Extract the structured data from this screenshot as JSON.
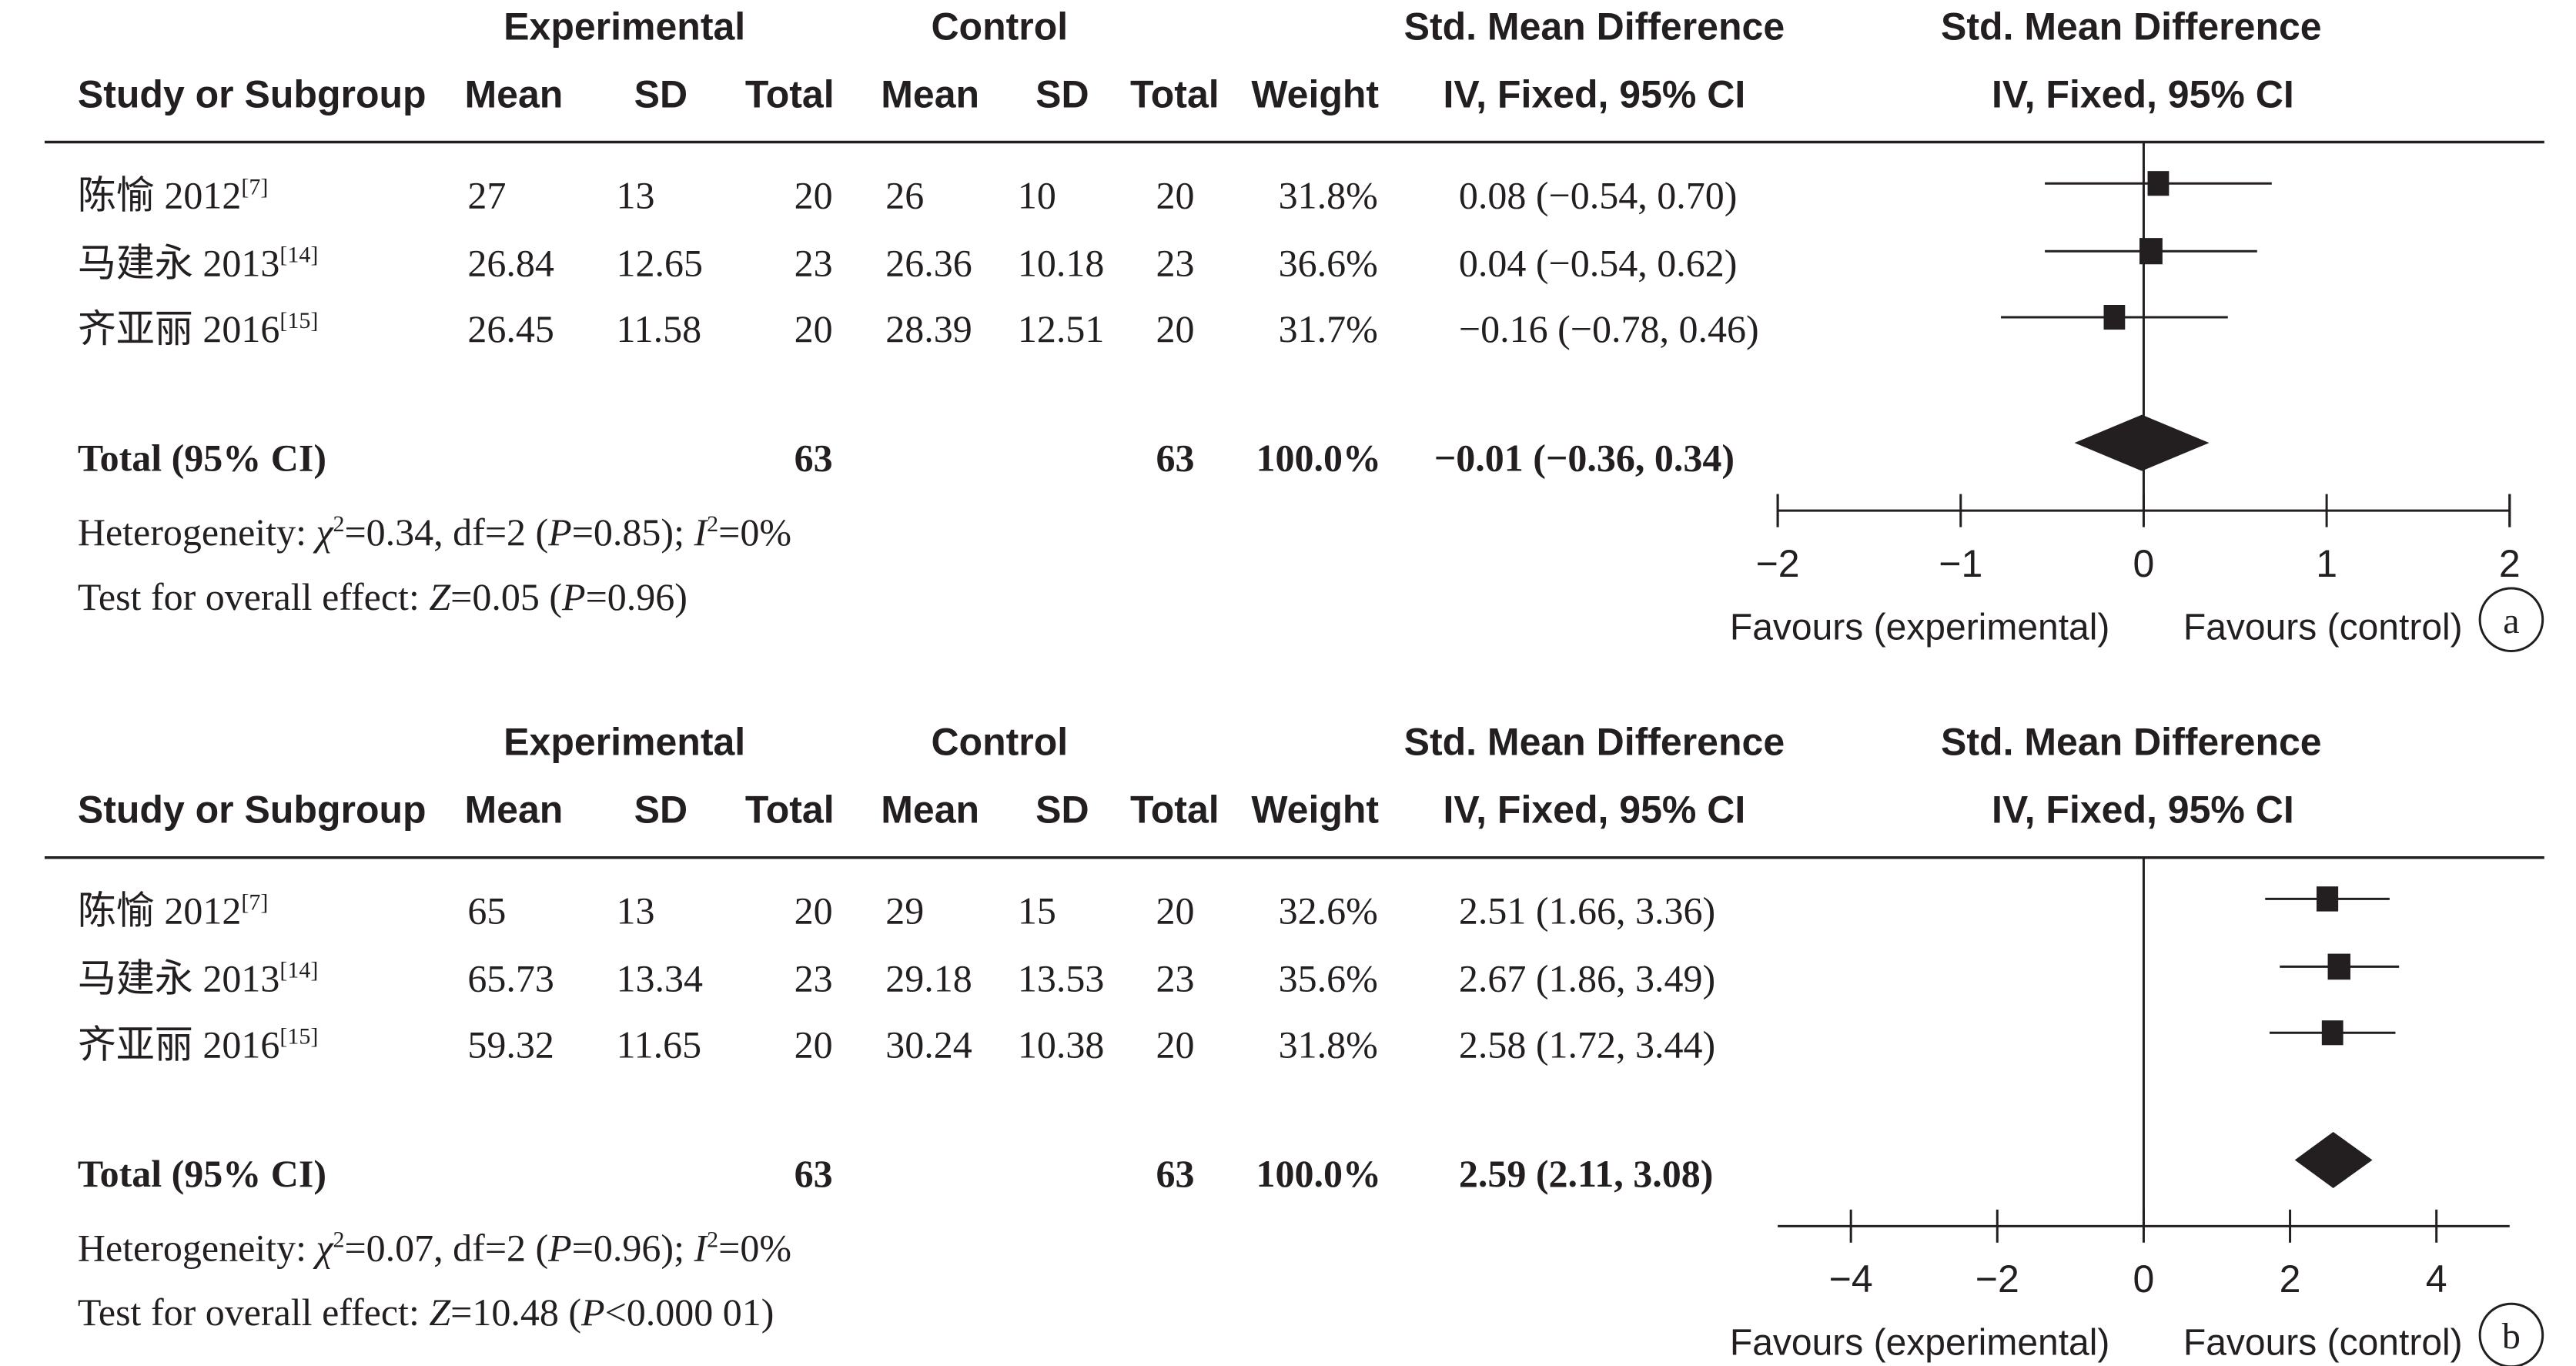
{
  "headers": {
    "experimental": "Experimental",
    "control": "Control",
    "smd": "Std. Mean Difference",
    "smd_plot": "Std. Mean Difference",
    "study": "Study or Subgroup",
    "mean": "Mean",
    "sd": "SD",
    "total": "Total",
    "weight": "Weight",
    "method": "IV, Fixed, 95% CI",
    "method_plot": "IV, Fixed, 95% CI"
  },
  "chart_data": [
    {
      "type": "forest",
      "panel_label": "a",
      "studies": [
        {
          "name": "陈愉 2012",
          "ref": "[7]",
          "exp_mean": "27",
          "exp_sd": "13",
          "exp_total": "20",
          "ctl_mean": "26",
          "ctl_sd": "10",
          "ctl_total": "20",
          "weight": "31.8%",
          "ci_text": "0.08 (−0.54, 0.70)",
          "est": 0.08,
          "lo": -0.54,
          "hi": 0.7,
          "w": 31.8
        },
        {
          "name": "马建永 2013",
          "ref": "[14]",
          "exp_mean": "26.84",
          "exp_sd": "12.65",
          "exp_total": "23",
          "ctl_mean": "26.36",
          "ctl_sd": "10.18",
          "ctl_total": "23",
          "weight": "36.6%",
          "ci_text": "0.04 (−0.54, 0.62)",
          "est": 0.04,
          "lo": -0.54,
          "hi": 0.62,
          "w": 36.6
        },
        {
          "name": "齐亚丽 2016",
          "ref": "[15]",
          "exp_mean": "26.45",
          "exp_sd": "11.58",
          "exp_total": "20",
          "ctl_mean": "28.39",
          "ctl_sd": "12.51",
          "ctl_total": "20",
          "weight": "31.7%",
          "ci_text": "−0.16 (−0.78, 0.46)",
          "est": -0.16,
          "lo": -0.78,
          "hi": 0.46,
          "w": 31.7
        }
      ],
      "total": {
        "label": "Total (95% CI)",
        "exp_total": "63",
        "ctl_total": "63",
        "weight": "100.0%",
        "ci_text": "−0.01 (−0.36, 0.34)",
        "est": -0.01,
        "lo": -0.36,
        "hi": 0.34
      },
      "heterogeneity": {
        "prefix": "Heterogeneity: ",
        "chi": "χ",
        "chi_sup": "2",
        "chi_rest": "=0.34, df=2 (",
        "p": "P",
        "p_rest": "=0.85); ",
        "i": "I",
        "i_sup": "2",
        "i_rest": "=0%"
      },
      "overall": {
        "prefix": "Test for overall effect: ",
        "z": "Z",
        "z_rest": "=0.05 (",
        "p": "P",
        "p_rest": "=0.96)"
      },
      "axis": {
        "min": -2,
        "max": 2,
        "ticks": [
          -2,
          -1,
          0,
          1,
          2
        ],
        "tick_labels": [
          "−2",
          "−1",
          "0",
          "1",
          "2"
        ]
      },
      "favours_left": "Favours (experimental)",
      "favours_right": "Favours (control)"
    },
    {
      "type": "forest",
      "panel_label": "b",
      "studies": [
        {
          "name": "陈愉 2012",
          "ref": "[7]",
          "exp_mean": "65",
          "exp_sd": "13",
          "exp_total": "20",
          "ctl_mean": "29",
          "ctl_sd": "15",
          "ctl_total": "20",
          "weight": "32.6%",
          "ci_text": "2.51 (1.66, 3.36)",
          "est": 2.51,
          "lo": 1.66,
          "hi": 3.36,
          "w": 32.6
        },
        {
          "name": "马建永 2013",
          "ref": "[14]",
          "exp_mean": "65.73",
          "exp_sd": "13.34",
          "exp_total": "23",
          "ctl_mean": "29.18",
          "ctl_sd": "13.53",
          "ctl_total": "23",
          "weight": "35.6%",
          "ci_text": "2.67 (1.86, 3.49)",
          "est": 2.67,
          "lo": 1.86,
          "hi": 3.49,
          "w": 35.6
        },
        {
          "name": "齐亚丽 2016",
          "ref": "[15]",
          "exp_mean": "59.32",
          "exp_sd": "11.65",
          "exp_total": "20",
          "ctl_mean": "30.24",
          "ctl_sd": "10.38",
          "ctl_total": "20",
          "weight": "31.8%",
          "ci_text": "2.58 (1.72, 3.44)",
          "est": 2.58,
          "lo": 1.72,
          "hi": 3.44,
          "w": 31.8
        }
      ],
      "total": {
        "label": "Total (95% CI)",
        "exp_total": "63",
        "ctl_total": "63",
        "weight": "100.0%",
        "ci_text": "2.59 (2.11, 3.08)",
        "est": 2.59,
        "lo": 2.11,
        "hi": 3.08
      },
      "heterogeneity": {
        "prefix": "Heterogeneity: ",
        "chi": "χ",
        "chi_sup": "2",
        "chi_rest": "=0.07, df=2 (",
        "p": "P",
        "p_rest": "=0.96); ",
        "i": "I",
        "i_sup": "2",
        "i_rest": "=0%"
      },
      "overall": {
        "prefix": "Test for overall effect: ",
        "z": "Z",
        "z_rest": "=10.48 (",
        "p": "P",
        "p_rest": "<0.000 01)"
      },
      "axis": {
        "min": -5,
        "max": 5,
        "ticks": [
          -4,
          -2,
          0,
          2,
          4
        ],
        "tick_labels": [
          "−4",
          "−2",
          "0",
          "2",
          "4"
        ]
      },
      "favours_left": "Favours (experimental)",
      "favours_right": "Favours (control)"
    }
  ]
}
